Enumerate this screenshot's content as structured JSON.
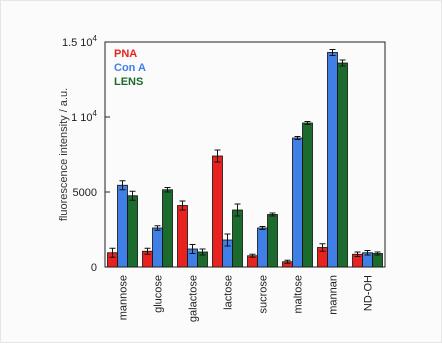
{
  "chart_data": {
    "type": "bar",
    "title": "",
    "xlabel": "",
    "ylabel": "fluorescence intensity / a.u.",
    "ylim": [
      0,
      15000
    ],
    "yticks": [
      {
        "value": 0,
        "label": "0"
      },
      {
        "value": 5000,
        "label": "5000"
      },
      {
        "value": 10000,
        "label": "1 10",
        "exp": "4"
      },
      {
        "value": 15000,
        "label": "1.5 10",
        "exp": "4"
      }
    ],
    "categories": [
      "mannose",
      "glucose",
      "galactose",
      "lactose",
      "sucrose",
      "maltose",
      "mannan",
      "ND-OH"
    ],
    "series": [
      {
        "name": "PNA",
        "color": "#e8231f",
        "values": [
          950,
          1050,
          4100,
          7400,
          750,
          350,
          1300,
          850
        ],
        "errors": [
          300,
          200,
          300,
          400,
          100,
          100,
          250,
          150
        ]
      },
      {
        "name": "Con A",
        "color": "#3f7fe6",
        "values": [
          5450,
          2600,
          1200,
          1800,
          2600,
          8600,
          14300,
          950
        ],
        "errors": [
          300,
          150,
          300,
          400,
          100,
          100,
          200,
          150
        ]
      },
      {
        "name": "LENS",
        "color": "#1c6b2e",
        "values": [
          4750,
          5150,
          1000,
          3800,
          3500,
          9600,
          13600,
          900
        ],
        "errors": [
          300,
          150,
          200,
          400,
          100,
          100,
          200,
          100
        ]
      }
    ],
    "legend_position": "top-left",
    "grid": false,
    "error_bars": true
  }
}
